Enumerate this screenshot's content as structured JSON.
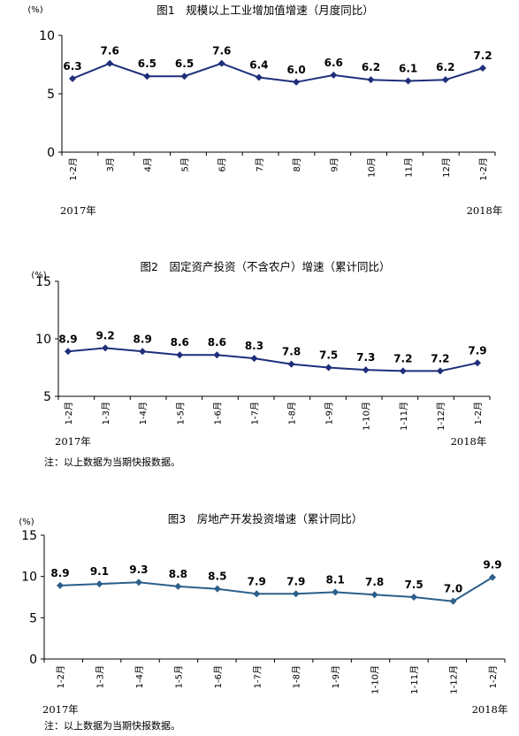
{
  "charts": [
    {
      "title": "图1　规模以上工业增加值增速（月度同比）",
      "unit": "(%)",
      "year_start": "2017年",
      "year_end": "2018年",
      "note": "",
      "color": "#1f2f7a",
      "marker": "diamond"
    },
    {
      "title": "图2　固定资产投资（不含农户）增速（累计同比）",
      "unit": "(%)",
      "year_start": "2017年",
      "year_end": "2018年",
      "note": "注：以上数据为当期快报数据。",
      "color": "#1f2f7a",
      "marker": "diamond"
    },
    {
      "title": "图3　房地产开发投资增速（累计同比）",
      "unit": "(%)",
      "year_start": "2017年",
      "year_end": "2018年",
      "note": "注：以上数据为当期快报数据。",
      "color": "#2c5f8a",
      "marker": "diamond"
    }
  ],
  "chart_data": [
    {
      "type": "line",
      "title": "图1　规模以上工业增加值增速（月度同比）",
      "ylabel": "(%)",
      "ylim": [
        0,
        10
      ],
      "yticks": [
        0,
        5,
        10
      ],
      "grid": false,
      "categories": [
        "1-2月",
        "3月",
        "4月",
        "5月",
        "6月",
        "7月",
        "8月",
        "9月",
        "10月",
        "11月",
        "12月",
        "1-2月"
      ],
      "series": [
        {
          "name": "",
          "values": [
            6.3,
            7.6,
            6.5,
            6.5,
            7.6,
            6.4,
            6.0,
            6.6,
            6.2,
            6.1,
            6.2,
            7.2
          ]
        }
      ]
    },
    {
      "type": "line",
      "title": "图2　固定资产投资（不含农户）增速（累计同比）",
      "ylabel": "(%)",
      "ylim": [
        5,
        15
      ],
      "yticks": [
        5,
        10,
        15
      ],
      "grid": false,
      "categories": [
        "1-2月",
        "1-3月",
        "1-4月",
        "1-5月",
        "1-6月",
        "1-7月",
        "1-8月",
        "1-9月",
        "1-10月",
        "1-11月",
        "1-12月",
        "1-2月"
      ],
      "series": [
        {
          "name": "",
          "values": [
            8.9,
            9.2,
            8.9,
            8.6,
            8.6,
            8.3,
            7.8,
            7.5,
            7.3,
            7.2,
            7.2,
            7.9
          ]
        }
      ]
    },
    {
      "type": "line",
      "title": "图3　房地产开发投资增速（累计同比）",
      "ylabel": "(%)",
      "ylim": [
        0,
        15
      ],
      "yticks": [
        0,
        5,
        10,
        15
      ],
      "grid": false,
      "categories": [
        "1-2月",
        "1-3月",
        "1-4月",
        "1-5月",
        "1-6月",
        "1-7月",
        "1-8月",
        "1-9月",
        "1-10月",
        "1-11月",
        "1-12月",
        "1-2月"
      ],
      "series": [
        {
          "name": "",
          "values": [
            8.9,
            9.1,
            9.3,
            8.8,
            8.5,
            7.9,
            7.9,
            8.1,
            7.8,
            7.5,
            7.0,
            9.9
          ]
        }
      ]
    }
  ]
}
